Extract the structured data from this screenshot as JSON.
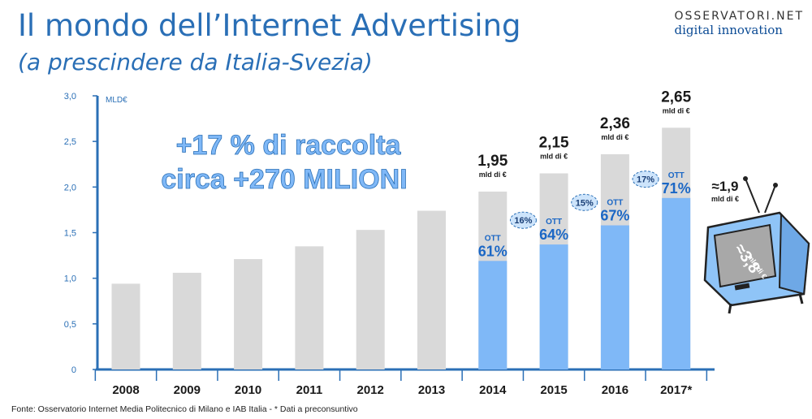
{
  "header": {
    "title": "Il mondo dell’Internet Advertising",
    "subtitle": "(a prescindere da Italia-Svezia)",
    "logo_top": "OSSERVATORI.NET",
    "logo_bottom": "digital innovation"
  },
  "footer": {
    "source": "Fonte: Osservatorio Internet Media Politecnico di Milano e IAB Italia - * Dati a preconsuntivo"
  },
  "chart_data": {
    "type": "bar",
    "ylabel": "MLD€",
    "ylim": [
      0,
      3.0
    ],
    "yticks": [
      "0",
      "0,5",
      "1,0",
      "1,5",
      "2,0",
      "2,5",
      "3,0"
    ],
    "categories": [
      "2008",
      "2009",
      "2010",
      "2011",
      "2012",
      "2013",
      "2014",
      "2015",
      "2016",
      "2017*"
    ],
    "series": [
      {
        "values": [
          0.94,
          1.06,
          1.21,
          1.35,
          1.53,
          1.74,
          1.95,
          2.15,
          2.36,
          2.65
        ]
      },
      {
        "values": [
          null,
          null,
          null,
          null,
          null,
          null,
          1.19,
          1.37,
          1.58,
          1.88
        ]
      }
    ],
    "colors": {
      "total": "#d9d9d9",
      "ott": "#7fb8f7",
      "ott_text": "#1b67c5",
      "axis": "#2a6fb6"
    },
    "total_labels": [
      {
        "index": 6,
        "value": "1,95",
        "unit": "mld di €"
      },
      {
        "index": 7,
        "value": "2,15",
        "unit": "mld di €"
      },
      {
        "index": 8,
        "value": "2,36",
        "unit": "mld di €"
      },
      {
        "index": 9,
        "value": "2,65",
        "unit": "mld di €"
      }
    ],
    "ott_labels": [
      {
        "index": 6,
        "label": "OTT",
        "pct": "61%"
      },
      {
        "index": 7,
        "label": "OTT",
        "pct": "64%"
      },
      {
        "index": 8,
        "label": "OTT",
        "pct": "67%"
      },
      {
        "index": 9,
        "label": "OTT",
        "pct": "71%"
      }
    ],
    "growth_labels": [
      {
        "between": [
          6,
          7
        ],
        "text": "16%"
      },
      {
        "between": [
          7,
          8
        ],
        "text": "15%"
      },
      {
        "between": [
          8,
          9
        ],
        "text": "17%"
      }
    ],
    "headline": [
      "+17 % di raccolta",
      "circa +270 MILIONI"
    ],
    "tv_side": {
      "value": "≈1,9",
      "unit": "mld di €"
    },
    "tv_screen": {
      "value": "≈3,8",
      "unit": "mld di €"
    }
  }
}
